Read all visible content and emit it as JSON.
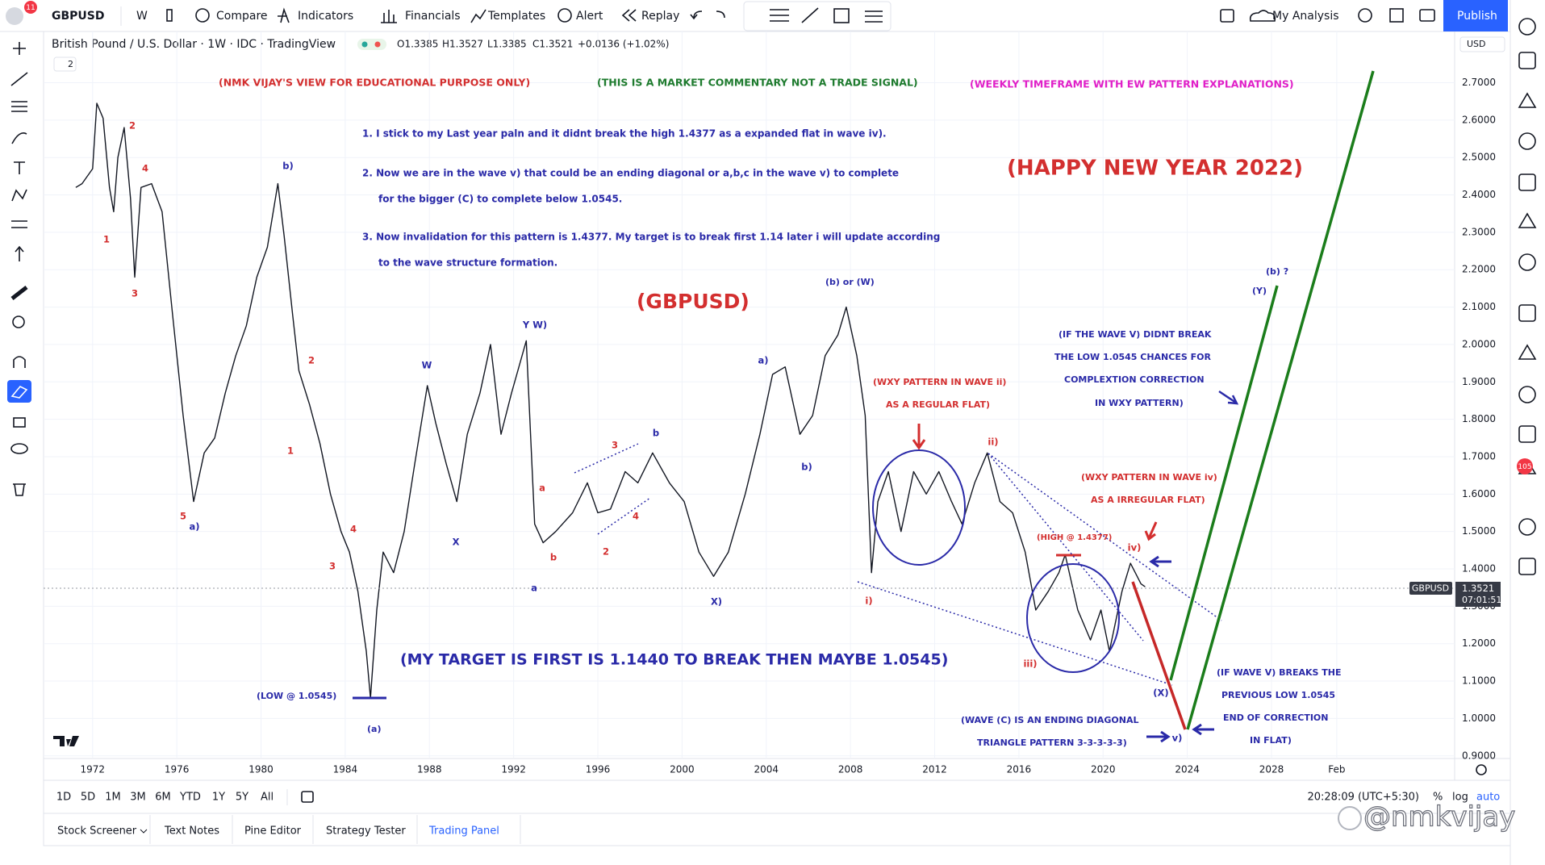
{
  "toolbar": {
    "symbol": "GBPUSD",
    "badge": "11",
    "interval": "W",
    "compare": "Compare",
    "indicators": "Indicators",
    "financials": "Financials",
    "templates": "Templates",
    "alert": "Alert",
    "replay": "Replay",
    "layout": "My Analysis",
    "publish": "Publish"
  },
  "legend": {
    "title": "British Pound / U.S. Dollar · 1W · IDC · TradingView",
    "ohlc": [
      "O1.3385",
      "H1.3527",
      "L1.3385",
      "C1.3521",
      "+0.0136 (+1.02%)"
    ],
    "indicators_count": "2"
  },
  "price_axis": {
    "currency": "USD",
    "symbol_label": "GBPUSD",
    "last_price": "1.3521",
    "countdown": "07:01:51"
  },
  "right_badge": "105",
  "range_bar": {
    "ranges": [
      "1D",
      "5D",
      "1M",
      "3M",
      "6M",
      "YTD",
      "1Y",
      "5Y",
      "All"
    ],
    "clock": "20:28:09 (UTC+5:30)",
    "percent": "%",
    "log": "log",
    "auto": "auto"
  },
  "tabs": [
    "Stock Screener",
    "Text Notes",
    "Pine Editor",
    "Strategy Tester",
    "Trading Panel"
  ],
  "watermark": "@nmkvijay",
  "chart_data": {
    "type": "line",
    "color": "#131722",
    "grid": true,
    "x": [
      1971.2,
      1971.5,
      1972.0,
      1972.2,
      1972.5,
      1972.8,
      1973.0,
      1973.2,
      1973.5,
      1973.8,
      1974.0,
      1974.3,
      1974.8,
      1975.3,
      1975.8,
      1976.3,
      1976.8,
      1977.3,
      1977.8,
      1978.3,
      1978.8,
      1979.3,
      1979.8,
      1980.3,
      1980.8,
      1981.1,
      1981.5,
      1981.8,
      1982.3,
      1982.8,
      1983.3,
      1983.8,
      1984.2,
      1984.6,
      1985.0,
      1985.2,
      1985.5,
      1985.8,
      1986.3,
      1986.8,
      1987.3,
      1987.9,
      1988.3,
      1988.8,
      1989.3,
      1989.8,
      1990.4,
      1990.9,
      1991.4,
      1991.9,
      1992.6,
      1993.0,
      1993.4,
      1994.0,
      1994.8,
      1995.5,
      1996.0,
      1996.6,
      1997.3,
      1997.9,
      1998.6,
      1999.4,
      2000.1,
      2000.8,
      2001.5,
      2002.2,
      2003.0,
      2003.7,
      2004.3,
      2004.9,
      2005.6,
      2006.2,
      2006.8,
      2007.4,
      2007.8,
      2008.3,
      2008.7,
      2009.0,
      2009.3,
      2009.8,
      2010.4,
      2011.0,
      2011.6,
      2012.2,
      2012.8,
      2013.3,
      2013.9,
      2014.5,
      2015.1,
      2015.7,
      2016.3,
      2016.8,
      2017.4,
      2017.9,
      2018.2,
      2018.8,
      2019.4,
      2019.9,
      2020.3,
      2020.9,
      2021.3,
      2021.8,
      2022.0
    ],
    "values": [
      2.42,
      2.43,
      2.47,
      2.645,
      2.605,
      2.42,
      2.355,
      2.5,
      2.58,
      2.39,
      2.18,
      2.42,
      2.43,
      2.355,
      2.08,
      1.81,
      1.58,
      1.71,
      1.75,
      1.87,
      1.97,
      2.05,
      2.18,
      2.26,
      2.43,
      2.29,
      2.08,
      1.93,
      1.84,
      1.735,
      1.6,
      1.5,
      1.445,
      1.34,
      1.18,
      1.0545,
      1.29,
      1.445,
      1.39,
      1.5,
      1.68,
      1.89,
      1.79,
      1.68,
      1.58,
      1.76,
      1.87,
      2.0,
      1.76,
      1.87,
      2.01,
      1.52,
      1.47,
      1.5,
      1.55,
      1.63,
      1.55,
      1.56,
      1.66,
      1.63,
      1.71,
      1.63,
      1.58,
      1.445,
      1.38,
      1.445,
      1.6,
      1.76,
      1.92,
      1.94,
      1.76,
      1.81,
      1.97,
      2.025,
      2.1,
      1.97,
      1.81,
      1.39,
      1.58,
      1.66,
      1.5,
      1.66,
      1.6,
      1.66,
      1.58,
      1.52,
      1.63,
      1.71,
      1.58,
      1.55,
      1.445,
      1.29,
      1.34,
      1.39,
      1.4377,
      1.29,
      1.21,
      1.29,
      1.18,
      1.34,
      1.415,
      1.36,
      1.3521
    ],
    "xlim": [
      1969.67,
      2036.7
    ],
    "ylim": [
      0.893,
      2.837
    ],
    "xticks": [
      1972,
      1976,
      1980,
      1984,
      1988,
      1992,
      1996,
      2000,
      2004,
      2008,
      2012,
      2016,
      2020,
      2024,
      2028,
      {
        "value": 2031.1,
        "label": "Feb"
      }
    ],
    "yticks": [
      {
        "value": 0.9,
        "label": "0.9000"
      },
      {
        "value": 1.0,
        "label": "1.0000"
      },
      {
        "value": 1.1,
        "label": "1.1000"
      },
      {
        "value": 1.2,
        "label": "1.2000"
      },
      {
        "value": 1.3,
        "label": "1.3000"
      },
      {
        "value": 1.4,
        "label": "1.4000"
      },
      {
        "value": 1.5,
        "label": "1.5000"
      },
      {
        "value": 1.6,
        "label": "1.6000"
      },
      {
        "value": 1.7,
        "label": "1.7000"
      },
      {
        "value": 1.8,
        "label": "1.8000"
      },
      {
        "value": 1.9,
        "label": "1.9000"
      },
      {
        "value": 2.0,
        "label": "2.0000"
      },
      {
        "value": 2.1,
        "label": "2.1000"
      },
      {
        "value": 2.2,
        "label": "2.2000"
      },
      {
        "value": 2.3,
        "label": "2.3000"
      },
      {
        "value": 2.4,
        "label": "2.4000"
      },
      {
        "value": 2.5,
        "label": "2.5000"
      },
      {
        "value": 2.6,
        "label": "2.6000"
      },
      {
        "value": 2.7,
        "label": "2.7000"
      }
    ],
    "annotations": [
      "(NMK VIJAY'S VIEW FOR EDUCATIONAL PURPOSE ONLY)",
      "(THIS IS A MARKET COMMENTARY NOT A TRADE SIGNAL)",
      "(WEEKLY TIMEFRAME WITH EW PATTERN EXPLANATIONS)",
      "1. I stick to my Last year paln and it didnt break the high 1.4377 as a expanded flat in wave iv).",
      "2. Now we are in the wave v) that could be an ending diagonal or a,b,c in the wave v) to complete",
      "for the bigger (C) to complete below 1.0545.",
      "3. Now invalidation for this pattern is 1.4377. My target is to break first 1.14 later i will update according",
      "to the wave structure formation.",
      "(HAPPY NEW YEAR 2022)",
      "(GBPUSD)",
      "(MY TARGET IS FIRST IS 1.1440 TO BREAK THEN MAYBE 1.0545)",
      "(LOW @ 1.0545)",
      "(a)",
      "(b) or (W)",
      "(WXY PATTERN IN WAVE ii)",
      "AS A REGULAR FLAT)",
      "(IF THE WAVE V) DIDNT BREAK",
      "THE LOW 1.0545 CHANCES FOR",
      "COMPLEXTION CORRECTION",
      "IN WXY PATTERN)",
      "(WXY PATTERN IN WAVE iv)",
      "AS A IRREGULAR FLAT)",
      "(HIGH @ 1.4377)",
      "(IF WAVE V) BREAKS THE",
      "PREVIOUS LOW 1.0545",
      "END OF CORRECTION",
      "IN FLAT)",
      "(WAVE (C) IS AN ENDING DIAGONAL",
      "TRIANGLE PATTERN 3-3-3-3-3)",
      "(b) ?",
      "(Y)"
    ],
    "wave_labels": [
      "2",
      "4",
      "1",
      "3",
      "5",
      "2",
      "1",
      "3",
      "4",
      "a",
      "b",
      "3",
      "2",
      "4",
      "ii)",
      "i)",
      "iii)",
      "iv)",
      "b)",
      "a)",
      "Y W)",
      "W",
      "X",
      "a",
      "b",
      "a)",
      "b)",
      "X)",
      "(X)",
      "v)"
    ]
  }
}
